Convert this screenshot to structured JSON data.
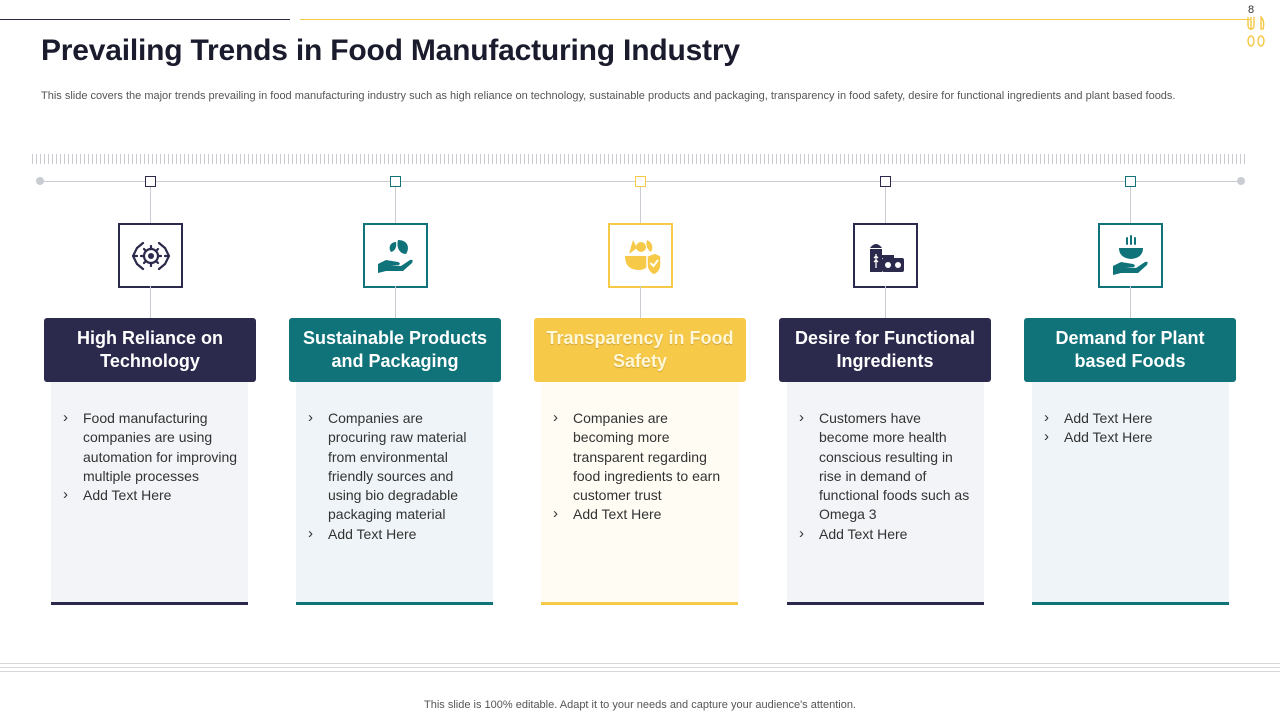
{
  "slide": {
    "page_number": "8",
    "title": "Prevailing Trends in Food Manufacturing Industry",
    "subtitle": "This slide covers the major trends prevailing in food manufacturing industry such as high reliance on technology,  sustainable products and packaging, transparency in food safety, desire for functional ingredients and plant based foods."
  },
  "colors": {
    "navy": "#2b2a4c",
    "teal": "#0f7379",
    "gold": "#f7c948"
  },
  "trends": [
    {
      "heading": "High Reliance on Technology",
      "icon": "gear-network-icon",
      "color": "#2b2a4c",
      "bullets": [
        "Food manufacturing companies are using automation for improving multiple processes",
        "Add Text Here"
      ]
    },
    {
      "heading": "Sustainable Products and Packaging",
      "icon": "hand-leaf-icon",
      "color": "#0f7379",
      "bullets": [
        "Companies are procuring raw material from environmental friendly sources and using bio degradable packaging material",
        "Add Text Here"
      ]
    },
    {
      "heading": "Transparency in Food Safety",
      "icon": "food-shield-icon",
      "color": "#f7c948",
      "bullets": [
        "Companies are becoming more transparent regarding food ingredients to earn customer trust",
        "Add Text Here"
      ]
    },
    {
      "heading": "Desire for Functional Ingredients",
      "icon": "grain-silo-icon",
      "color": "#2b2a4c",
      "bullets": [
        "Customers have become more health conscious resulting in rise in demand of functional foods such as Omega 3",
        "Add Text Here"
      ]
    },
    {
      "heading": "Demand for Plant based Foods",
      "icon": "serving-bowl-icon",
      "color": "#0f7379",
      "bullets": [
        "Add Text Here",
        "Add Text Here"
      ]
    }
  ],
  "footer": {
    "text": "This slide is 100% editable. Adapt it to your needs and capture your audience's attention."
  }
}
